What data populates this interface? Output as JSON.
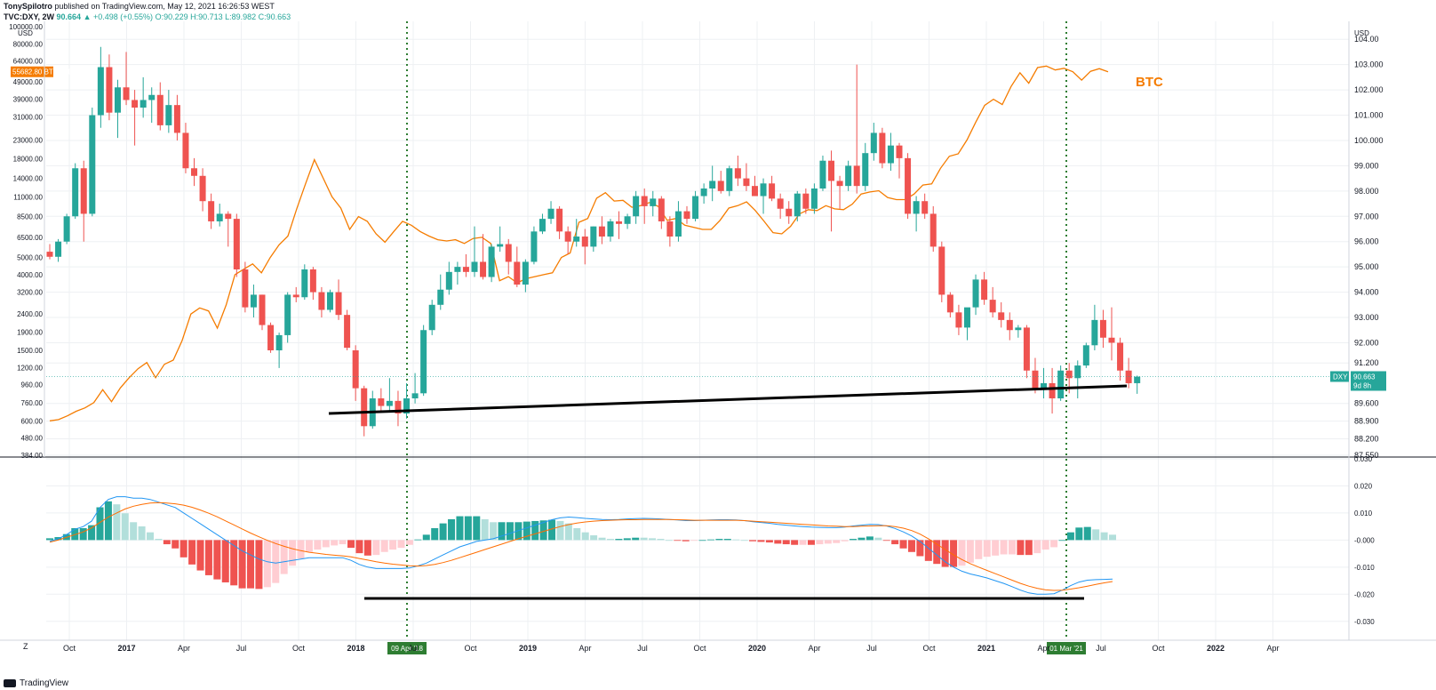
{
  "header": {
    "line1_author": "TonySpilotro",
    "line1_rest": "published on TradingView.com, May 12, 2021 16:26:53 WEST",
    "line2_symbol": "TVC:DXY, 2W",
    "line2_price": "90.664",
    "line2_change": "▲ +0.498 (+0.55%)",
    "line2_ohlc": "O:90.229 H:90.713 L:89.982 C:90.663"
  },
  "footer": {
    "brand": "TradingView",
    "zoom_button": "Z"
  },
  "colors": {
    "up": "#26a69a",
    "down": "#ef5350",
    "btc": "#f57c00",
    "macd": "#2196f3",
    "signal": "#ff6d00",
    "hist_up_strong": "#26a69a",
    "hist_up_weak": "#b2dfdb",
    "hist_down_strong": "#ef5350",
    "hist_down_weak": "#ffcdd2",
    "marker_line": "#2e7d32",
    "support": "#000000"
  },
  "chart_data": [
    {
      "type": "candlestick",
      "title": "",
      "symbol": "DXY",
      "interval": "2W",
      "last_price": "90.663",
      "countdown": "9d 8h",
      "right_axis": {
        "unit": "USD",
        "ylim": [
          87.55,
          104.5
        ],
        "ticks": [
          "104.00",
          "103.000",
          "102.000",
          "101.000",
          "100.000",
          "99.000",
          "98.000",
          "97.000",
          "96.000",
          "95.000",
          "94.000",
          "93.000",
          "92.000",
          "91.200",
          "90.663",
          "89.600",
          "88.900",
          "88.200",
          "87.550"
        ]
      },
      "left_axis": {
        "unit": "USD",
        "scale": "log",
        "overlay_symbol": "BTCUSD",
        "overlay_last": "55682.80",
        "ticks": [
          "100000.00",
          "80000.00",
          "64000.00",
          "49000.00",
          "39000.00",
          "31000.00",
          "23000.00",
          "18000.00",
          "14000.00",
          "11000.00",
          "8500.00",
          "6500.00",
          "5000.00",
          "4000.00",
          "3200.00",
          "2400.00",
          "1900.00",
          "1500.00",
          "1200.00",
          "960.00",
          "760.00",
          "600.00",
          "480.00",
          "384.00"
        ]
      },
      "x_axis": {
        "labels": [
          "Oct",
          "2017",
          "Apr",
          "Jul",
          "Oct",
          "2018",
          "Jul",
          "Oct",
          "2019",
          "Apr",
          "Jul",
          "Oct",
          "2020",
          "Apr",
          "Jul",
          "Oct",
          "2021",
          "Apr",
          "Jul",
          "Oct",
          "2022",
          "Apr"
        ],
        "markers": [
          "09 Apr '18",
          "01 Mar '21"
        ]
      },
      "annotation": "BTC",
      "dxy_ohlc": [
        [
          95.6,
          95.9,
          95.3,
          95.4
        ],
        [
          95.4,
          96.1,
          95.2,
          96.0
        ],
        [
          96.0,
          97.1,
          95.9,
          97.0
        ],
        [
          97.0,
          99.1,
          96.9,
          98.9
        ],
        [
          98.9,
          99.2,
          96.0,
          97.1
        ],
        [
          97.1,
          101.3,
          97.0,
          101.0
        ],
        [
          101.0,
          103.7,
          100.5,
          102.9
        ],
        [
          102.9,
          103.4,
          100.8,
          101.1
        ],
        [
          101.1,
          102.4,
          100.1,
          102.1
        ],
        [
          102.1,
          103.5,
          101.4,
          101.6
        ],
        [
          101.6,
          102.0,
          99.8,
          101.3
        ],
        [
          101.3,
          102.5,
          100.9,
          101.6
        ],
        [
          101.6,
          102.1,
          100.7,
          101.8
        ],
        [
          101.8,
          102.3,
          100.4,
          100.6
        ],
        [
          100.6,
          102.0,
          100.3,
          101.4
        ],
        [
          101.4,
          101.8,
          100.0,
          100.3
        ],
        [
          100.3,
          100.7,
          98.7,
          98.9
        ],
        [
          98.9,
          99.3,
          98.2,
          98.6
        ],
        [
          98.6,
          98.9,
          97.2,
          97.6
        ],
        [
          97.6,
          97.9,
          96.5,
          96.8
        ],
        [
          96.8,
          97.5,
          96.6,
          97.1
        ],
        [
          97.1,
          97.2,
          95.8,
          96.9
        ],
        [
          96.9,
          97.1,
          94.6,
          94.9
        ],
        [
          94.9,
          95.2,
          93.2,
          93.4
        ],
        [
          93.4,
          94.3,
          93.0,
          93.9
        ],
        [
          93.9,
          93.9,
          92.5,
          92.7
        ],
        [
          92.7,
          92.8,
          91.6,
          91.7
        ],
        [
          91.7,
          92.4,
          91.0,
          92.3
        ],
        [
          92.3,
          94.0,
          92.0,
          93.9
        ],
        [
          93.9,
          94.2,
          93.6,
          93.8
        ],
        [
          93.8,
          95.1,
          93.7,
          94.9
        ],
        [
          94.9,
          95.0,
          93.7,
          94.0
        ],
        [
          94.0,
          94.2,
          93.0,
          93.3
        ],
        [
          93.3,
          94.1,
          93.2,
          94.0
        ],
        [
          94.0,
          94.5,
          92.9,
          93.1
        ],
        [
          93.1,
          93.3,
          91.7,
          91.8
        ],
        [
          91.7,
          91.9,
          89.7,
          90.2
        ],
        [
          90.2,
          90.3,
          88.3,
          88.7
        ],
        [
          88.7,
          90.1,
          88.6,
          89.8
        ],
        [
          89.8,
          90.2,
          89.3,
          89.5
        ],
        [
          89.5,
          90.6,
          89.3,
          89.7
        ],
        [
          89.7,
          90.1,
          88.7,
          89.2
        ],
        [
          89.2,
          90.4,
          89.0,
          89.8
        ],
        [
          89.8,
          90.8,
          89.6,
          90.0
        ],
        [
          90.0,
          92.7,
          89.9,
          92.5
        ],
        [
          92.5,
          93.7,
          92.3,
          93.5
        ],
        [
          93.5,
          94.7,
          93.3,
          94.1
        ],
        [
          94.1,
          95.2,
          93.9,
          94.8
        ],
        [
          94.8,
          95.2,
          94.3,
          95.0
        ],
        [
          95.0,
          95.5,
          94.6,
          94.8
        ],
        [
          94.8,
          96.6,
          94.6,
          95.2
        ],
        [
          95.2,
          96.3,
          94.5,
          94.6
        ],
        [
          94.6,
          95.9,
          94.4,
          95.8
        ],
        [
          95.8,
          96.6,
          95.6,
          95.9
        ],
        [
          95.9,
          96.1,
          94.7,
          95.2
        ],
        [
          95.2,
          95.8,
          94.2,
          94.3
        ],
        [
          94.3,
          95.3,
          94.0,
          95.2
        ],
        [
          95.2,
          96.6,
          95.1,
          96.4
        ],
        [
          96.4,
          97.1,
          96.3,
          96.9
        ],
        [
          96.9,
          97.6,
          96.7,
          97.3
        ],
        [
          97.3,
          97.4,
          96.1,
          96.4
        ],
        [
          96.4,
          96.6,
          95.5,
          96.0
        ],
        [
          96.0,
          96.9,
          95.8,
          96.2
        ],
        [
          96.2,
          96.5,
          95.1,
          95.8
        ],
        [
          95.8,
          96.6,
          95.6,
          96.6
        ],
        [
          96.6,
          97.0,
          95.9,
          96.2
        ],
        [
          96.2,
          96.9,
          96.0,
          96.8
        ],
        [
          96.8,
          97.2,
          96.1,
          96.7
        ],
        [
          96.7,
          97.1,
          96.5,
          97.0
        ],
        [
          97.0,
          98.0,
          96.7,
          97.8
        ],
        [
          97.8,
          98.1,
          96.7,
          97.4
        ],
        [
          97.4,
          98.0,
          97.0,
          97.7
        ],
        [
          97.7,
          97.8,
          96.5,
          96.8
        ],
        [
          96.8,
          97.0,
          95.8,
          96.2
        ],
        [
          96.2,
          97.6,
          96.0,
          97.2
        ],
        [
          97.2,
          97.4,
          96.7,
          96.9
        ],
        [
          96.9,
          98.0,
          96.8,
          97.8
        ],
        [
          97.8,
          98.3,
          97.5,
          98.1
        ],
        [
          98.1,
          99.0,
          97.6,
          98.4
        ],
        [
          98.4,
          98.8,
          97.9,
          98.0
        ],
        [
          98.0,
          99.0,
          97.8,
          98.9
        ],
        [
          98.9,
          99.4,
          98.2,
          98.5
        ],
        [
          98.5,
          99.1,
          98.0,
          98.2
        ],
        [
          98.2,
          98.6,
          97.8,
          97.8
        ],
        [
          97.8,
          98.5,
          97.1,
          98.3
        ],
        [
          98.3,
          98.6,
          97.6,
          97.7
        ],
        [
          97.7,
          97.9,
          96.9,
          97.3
        ],
        [
          97.3,
          97.6,
          96.7,
          97.0
        ],
        [
          97.0,
          98.0,
          96.8,
          97.9
        ],
        [
          97.9,
          98.1,
          97.1,
          97.3
        ],
        [
          97.3,
          98.3,
          97.1,
          98.1
        ],
        [
          98.1,
          99.4,
          98.0,
          99.2
        ],
        [
          99.2,
          99.6,
          96.4,
          98.4
        ],
        [
          98.4,
          98.6,
          97.3,
          98.2
        ],
        [
          98.2,
          99.2,
          98.0,
          99.0
        ],
        [
          99.0,
          103.0,
          97.9,
          98.2
        ],
        [
          98.2,
          99.9,
          98.0,
          99.5
        ],
        [
          99.5,
          100.7,
          99.2,
          100.3
        ],
        [
          100.3,
          100.5,
          98.9,
          99.1
        ],
        [
          99.1,
          100.3,
          98.8,
          99.8
        ],
        [
          99.8,
          99.9,
          98.5,
          99.3
        ],
        [
          99.3,
          99.5,
          96.9,
          97.1
        ],
        [
          97.1,
          97.8,
          96.4,
          97.6
        ],
        [
          97.6,
          97.9,
          96.9,
          97.1
        ],
        [
          97.1,
          97.4,
          95.6,
          95.8
        ],
        [
          95.8,
          96.0,
          93.6,
          93.9
        ],
        [
          93.9,
          94.0,
          93.0,
          93.2
        ],
        [
          93.2,
          93.5,
          92.3,
          92.6
        ],
        [
          92.6,
          93.3,
          92.1,
          93.4
        ],
        [
          93.4,
          94.7,
          93.1,
          94.5
        ],
        [
          94.5,
          94.8,
          93.5,
          93.7
        ],
        [
          93.7,
          94.2,
          93.0,
          93.2
        ],
        [
          93.2,
          93.6,
          92.6,
          92.9
        ],
        [
          92.9,
          93.2,
          92.1,
          92.5
        ],
        [
          92.5,
          92.7,
          92.2,
          92.6
        ],
        [
          92.6,
          92.7,
          90.6,
          90.9
        ],
        [
          90.9,
          91.4,
          90.0,
          90.2
        ],
        [
          90.2,
          91.0,
          89.8,
          90.4
        ],
        [
          90.4,
          91.0,
          89.2,
          89.8
        ],
        [
          89.8,
          91.1,
          89.7,
          90.9
        ],
        [
          90.9,
          91.2,
          90.0,
          90.6
        ],
        [
          90.6,
          91.3,
          89.8,
          91.1
        ],
        [
          91.1,
          92.0,
          91.0,
          91.9
        ],
        [
          91.9,
          93.5,
          91.7,
          92.9
        ],
        [
          92.9,
          93.3,
          91.8,
          92.2
        ],
        [
          92.2,
          93.4,
          91.3,
          92.0
        ],
        [
          92.0,
          92.2,
          90.5,
          90.9
        ],
        [
          90.9,
          91.4,
          90.2,
          90.4
        ],
        [
          90.4,
          90.7,
          89.98,
          90.66
        ]
      ],
      "btc_closes": [
        600,
        610,
        640,
        680,
        710,
        760,
        900,
        770,
        920,
        1050,
        1180,
        1280,
        1050,
        1250,
        1320,
        1700,
        2400,
        2600,
        2500,
        2000,
        2700,
        4000,
        4300,
        4600,
        4100,
        5000,
        5900,
        6600,
        9400,
        13000,
        17800,
        14000,
        11000,
        9500,
        7200,
        8500,
        8000,
        6800,
        6100,
        7000,
        8000,
        7600,
        7000,
        6600,
        6300,
        6200,
        6300,
        6000,
        6400,
        6500,
        6000,
        3700,
        3900,
        3600,
        3800,
        3900,
        4000,
        4100,
        5000,
        5300,
        7900,
        8300,
        10800,
        11600,
        10400,
        10500,
        9600,
        9800,
        10200,
        9700,
        8100,
        8300,
        7600,
        7400,
        7200,
        7200,
        8100,
        9500,
        9800,
        10300,
        9200,
        8000,
        6900,
        6800,
        7500,
        8800,
        9300,
        9200,
        9800,
        9400,
        9300,
        10000,
        11400,
        11700,
        11900,
        10900,
        10600,
        10600,
        11400,
        12800,
        13000,
        15900,
        18600,
        19200,
        23000,
        29000,
        36000,
        39000,
        36400,
        46000,
        55000,
        48000,
        58800,
        60000,
        57000,
        58300,
        55700,
        50000,
        56000,
        58000,
        55682
      ]
    },
    {
      "type": "macd",
      "title": "",
      "ylim": [
        -0.035,
        0.03
      ],
      "ticks": [
        "0.030",
        "0.020",
        "0.010",
        "-0.000",
        "-0.010",
        "-0.020",
        "-0.030"
      ],
      "macd": [
        -0.0005,
        0.0005,
        0.002,
        0.004,
        0.005,
        0.007,
        0.012,
        0.015,
        0.016,
        0.016,
        0.0155,
        0.0155,
        0.015,
        0.014,
        0.013,
        0.012,
        0.01,
        0.008,
        0.006,
        0.004,
        0.002,
        0.0,
        -0.002,
        -0.004,
        -0.0055,
        -0.007,
        -0.008,
        -0.0085,
        -0.008,
        -0.0075,
        -0.007,
        -0.0065,
        -0.0065,
        -0.0065,
        -0.0065,
        -0.0065,
        -0.0075,
        -0.009,
        -0.01,
        -0.0105,
        -0.0105,
        -0.0105,
        -0.0105,
        -0.0103,
        -0.0095,
        -0.0085,
        -0.007,
        -0.0055,
        -0.004,
        -0.0025,
        -0.0015,
        -0.0005,
        0.0,
        0.0005,
        0.0015,
        0.0025,
        0.0035,
        0.0045,
        0.0055,
        0.0065,
        0.0075,
        0.0082,
        0.0085,
        0.0083,
        0.008,
        0.0078,
        0.0076,
        0.0075,
        0.0076,
        0.0078,
        0.0079,
        0.008,
        0.0079,
        0.0078,
        0.0076,
        0.0074,
        0.0072,
        0.0072,
        0.0073,
        0.0074,
        0.0075,
        0.0075,
        0.0074,
        0.0072,
        0.0068,
        0.0065,
        0.0062,
        0.0058,
        0.0055,
        0.0052,
        0.005,
        0.0048,
        0.0047,
        0.0046,
        0.0046,
        0.0048,
        0.0052,
        0.0055,
        0.0058,
        0.0057,
        0.0052,
        0.0043,
        0.003,
        0.0015,
        -0.0005,
        -0.003,
        -0.0055,
        -0.008,
        -0.01,
        -0.0115,
        -0.0125,
        -0.0132,
        -0.014,
        -0.015,
        -0.016,
        -0.0172,
        -0.0185,
        -0.0195,
        -0.02,
        -0.02,
        -0.0198,
        -0.0185,
        -0.0168,
        -0.0155,
        -0.0148,
        -0.0146,
        -0.0145,
        -0.0144
      ],
      "signal": [
        -0.0008,
        0.0,
        0.001,
        0.002,
        0.003,
        0.0045,
        0.0065,
        0.0085,
        0.01,
        0.0115,
        0.0125,
        0.0132,
        0.0137,
        0.0138,
        0.0137,
        0.0134,
        0.0129,
        0.0121,
        0.0111,
        0.0099,
        0.0086,
        0.0071,
        0.0056,
        0.0041,
        0.0026,
        0.0012,
        -0.0001,
        -0.0013,
        -0.0023,
        -0.0032,
        -0.0039,
        -0.0045,
        -0.0049,
        -0.0053,
        -0.0056,
        -0.0058,
        -0.0062,
        -0.0068,
        -0.0074,
        -0.008,
        -0.0085,
        -0.0089,
        -0.0092,
        -0.0095,
        -0.0096,
        -0.0094,
        -0.009,
        -0.0083,
        -0.0075,
        -0.0065,
        -0.0055,
        -0.0045,
        -0.0035,
        -0.0025,
        -0.0015,
        -0.0005,
        0.0005,
        0.0014,
        0.0023,
        0.0032,
        0.0041,
        0.005,
        0.0057,
        0.0063,
        0.0067,
        0.007,
        0.0072,
        0.0073,
        0.0074,
        0.0075,
        0.0075,
        0.0076,
        0.0076,
        0.0076,
        0.0076,
        0.0075,
        0.0074,
        0.0073,
        0.0073,
        0.0073,
        0.0073,
        0.0073,
        0.0073,
        0.0072,
        0.007,
        0.0068,
        0.0066,
        0.0064,
        0.0062,
        0.006,
        0.0058,
        0.0056,
        0.0054,
        0.0052,
        0.0051,
        0.005,
        0.005,
        0.0051,
        0.0052,
        0.0053,
        0.0053,
        0.005,
        0.0044,
        0.0035,
        0.0022,
        0.0005,
        -0.0015,
        -0.0035,
        -0.0055,
        -0.0072,
        -0.0087,
        -0.01,
        -0.0112,
        -0.0124,
        -0.0136,
        -0.0148,
        -0.016,
        -0.017,
        -0.0178,
        -0.0184,
        -0.0186,
        -0.0185,
        -0.0181,
        -0.0176,
        -0.017,
        -0.0164,
        -0.0158,
        -0.0153
      ],
      "histogram_note": "histogram = macd - signal"
    }
  ]
}
